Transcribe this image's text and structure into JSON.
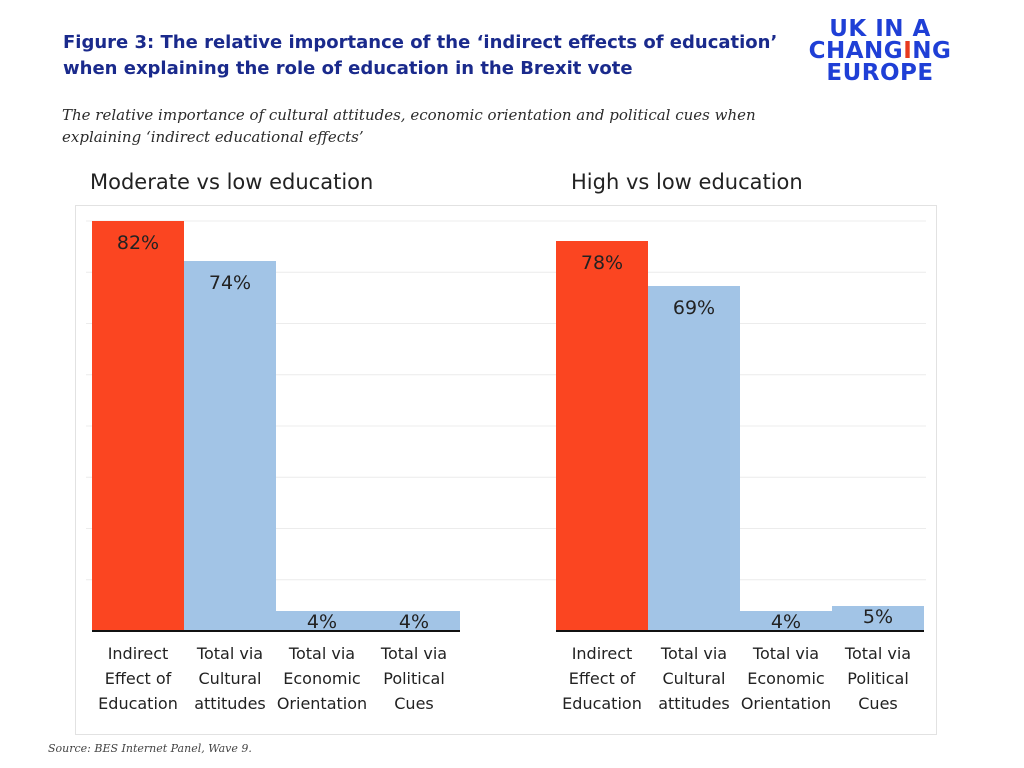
{
  "header": {
    "title": "Figure 3: The relative importance of the ‘indirect effects of education’ when explaining the role of education in the Brexit vote",
    "subtitle": "The relative importance of cultural attitudes, economic orientation and political cues when explaining ‘indirect educational effects’"
  },
  "logo": {
    "line1": "UK IN A",
    "line2_a": "CHAN",
    "line2_b": "G",
    "line2_c": "I",
    "line2_d": "NG",
    "line3": "EUROPE"
  },
  "source": "Source: BES Internet Panel, Wave 9.",
  "colors": {
    "highlight": "#fb4521",
    "bar": "#a2c4e6",
    "title": "#1a2a8c",
    "brand": "#1f3fd6",
    "brand_accent": "#e83a1f"
  },
  "chart_data": [
    {
      "type": "bar",
      "title": "Moderate vs low education",
      "categories": [
        "Indirect Effect of Education",
        "Total via Cultural attitudes",
        "Total via Economic Orientation",
        "Total via Political Cues"
      ],
      "category_lines": [
        [
          "Indirect",
          "Effect of",
          "Education"
        ],
        [
          "Total via",
          "Cultural",
          "attitudes"
        ],
        [
          "Total via",
          "Economic",
          "Orientation"
        ],
        [
          "Total via",
          "Political",
          "Cues"
        ]
      ],
      "values": [
        82,
        74,
        4,
        4
      ],
      "value_labels": [
        "82%",
        "74%",
        "4%",
        "4%"
      ],
      "ylim": [
        0,
        82
      ],
      "grid": true
    },
    {
      "type": "bar",
      "title": "High vs low education",
      "categories": [
        "Indirect Effect of Education",
        "Total via Cultural attitudes",
        "Total via Economic Orientation",
        "Total via Political Cues"
      ],
      "category_lines": [
        [
          "Indirect",
          "Effect of",
          "Education"
        ],
        [
          "Total via",
          "Cultural",
          "attitudes"
        ],
        [
          "Total via",
          "Economic",
          "Orientation"
        ],
        [
          "Total via",
          "Political",
          "Cues"
        ]
      ],
      "values": [
        78,
        69,
        4,
        5
      ],
      "value_labels": [
        "78%",
        "69%",
        "4%",
        "5%"
      ],
      "ylim": [
        0,
        82
      ],
      "grid": true
    }
  ]
}
